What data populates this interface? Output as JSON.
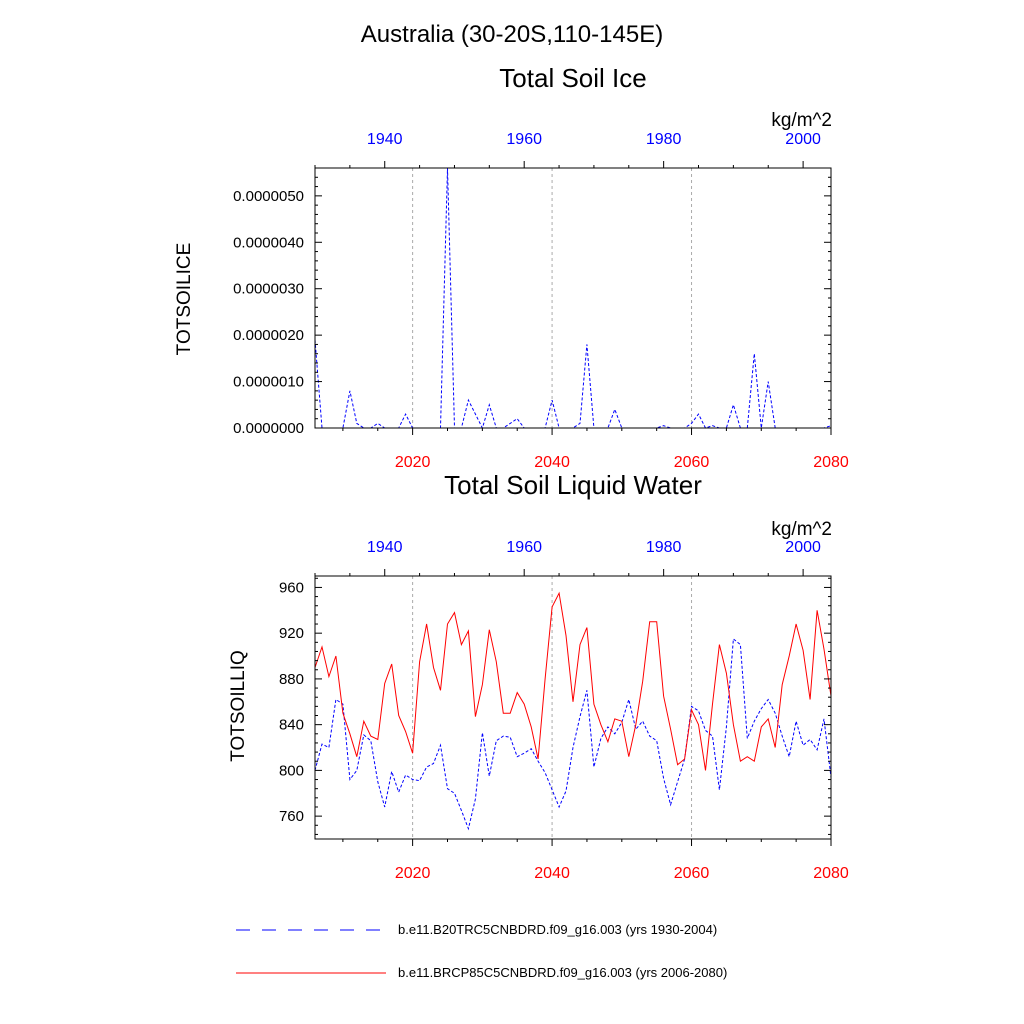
{
  "main_title": "Australia (30-20S,110-145E)",
  "colors": {
    "blue": "#0000ff",
    "red": "#ff0000",
    "grid": "#aaaaaa",
    "axis": "#000000"
  },
  "chart_data": [
    {
      "type": "line",
      "title": "Total Soil Ice",
      "units": "kg/m^2",
      "ylabel": "TOTSOILICE",
      "ylim": [
        0,
        5.6e-06
      ],
      "yticks": [
        "0.0000000",
        "0.0000010",
        "0.0000020",
        "0.0000030",
        "0.0000040",
        "0.0000050"
      ],
      "ytick_values": [
        0,
        1e-06,
        2e-06,
        3e-06,
        4e-06,
        5e-06
      ],
      "xlim_bottom": [
        2006,
        2080
      ],
      "xticks_bottom": [
        "2020",
        "2040",
        "2060",
        "2080"
      ],
      "xlim_top": [
        1930,
        2004
      ],
      "xticks_top": [
        "1940",
        "1960",
        "1980",
        "2000"
      ],
      "series": [
        {
          "name": "b.e11.B20TRC5CNBDRD.f09_g16.003 (yrs 1930-2004)",
          "style": "dashed",
          "color": "#0000ff",
          "x": [
            1930,
            1931,
            1932,
            1933,
            1934,
            1935,
            1936,
            1937,
            1938,
            1939,
            1940,
            1941,
            1942,
            1943,
            1944,
            1945,
            1946,
            1947,
            1948,
            1949,
            1950,
            1951,
            1952,
            1953,
            1954,
            1955,
            1956,
            1957,
            1958,
            1959,
            1960,
            1961,
            1962,
            1963,
            1964,
            1965,
            1966,
            1967,
            1968,
            1969,
            1970,
            1971,
            1972,
            1973,
            1974,
            1975,
            1976,
            1977,
            1978,
            1979,
            1980,
            1981,
            1982,
            1983,
            1984,
            1985,
            1986,
            1987,
            1988,
            1989,
            1990,
            1991,
            1992,
            1993,
            1994,
            1995,
            1996,
            1997,
            1998,
            1999,
            2000,
            2001,
            2002,
            2003,
            2004
          ],
          "values": [
            1.9e-06,
            0,
            0,
            0,
            0,
            8e-07,
            1e-07,
            0,
            0,
            1e-07,
            0,
            0,
            0,
            3e-07,
            0,
            0,
            0,
            0,
            0,
            5.6e-06,
            0,
            0,
            6e-07,
            3e-07,
            0,
            5e-07,
            0,
            0,
            1e-07,
            2e-07,
            0,
            0,
            0,
            0,
            6e-07,
            0,
            0,
            0,
            1e-07,
            1.8e-06,
            0,
            0,
            0,
            4e-07,
            0,
            0,
            0,
            0,
            0,
            0,
            5e-08,
            0,
            0,
            0,
            1e-07,
            3e-07,
            0,
            5e-08,
            0,
            0,
            5e-07,
            0,
            0,
            1.6e-06,
            0,
            1e-06,
            0,
            0,
            0,
            0,
            0,
            0,
            0,
            0,
            5e-08
          ]
        },
        {
          "name": "b.e11.BRCP85C5CNBDRD.f09_g16.003 (yrs 2006-2080)",
          "style": "solid",
          "color": "#ff0000",
          "x": [
            2006,
            2080
          ],
          "values": [
            0,
            0
          ]
        }
      ]
    },
    {
      "type": "line",
      "title": "Total Soil Liquid Water",
      "units": "kg/m^2",
      "ylabel": "TOTSOILLIQ",
      "ylim": [
        740,
        970
      ],
      "yticks": [
        "760",
        "800",
        "840",
        "880",
        "920",
        "960"
      ],
      "ytick_values": [
        760,
        800,
        840,
        880,
        920,
        960
      ],
      "xlim_bottom": [
        2006,
        2080
      ],
      "xticks_bottom": [
        "2020",
        "2040",
        "2060",
        "2080"
      ],
      "xlim_top": [
        1930,
        2004
      ],
      "xticks_top": [
        "1940",
        "1960",
        "1980",
        "2000"
      ],
      "series": [
        {
          "name": "b.e11.B20TRC5CNBDRD.f09_g16.003 (yrs 1930-2004)",
          "style": "dashed",
          "color": "#0000ff",
          "x": [
            1930,
            1931,
            1932,
            1933,
            1934,
            1935,
            1936,
            1937,
            1938,
            1939,
            1940,
            1941,
            1942,
            1943,
            1944,
            1945,
            1946,
            1947,
            1948,
            1949,
            1950,
            1951,
            1952,
            1953,
            1954,
            1955,
            1956,
            1957,
            1958,
            1959,
            1960,
            1961,
            1962,
            1963,
            1964,
            1965,
            1966,
            1967,
            1968,
            1969,
            1970,
            1971,
            1972,
            1973,
            1974,
            1975,
            1976,
            1977,
            1978,
            1979,
            1980,
            1981,
            1982,
            1983,
            1984,
            1985,
            1986,
            1987,
            1988,
            1989,
            1990,
            1991,
            1992,
            1993,
            1994,
            1995,
            1996,
            1997,
            1998,
            1999,
            2000,
            2001,
            2002,
            2003,
            2004
          ],
          "values": [
            800,
            823,
            820,
            862,
            858,
            792,
            800,
            831,
            826,
            790,
            768,
            799,
            781,
            796,
            792,
            791,
            803,
            806,
            822,
            784,
            780,
            765,
            749,
            775,
            833,
            795,
            826,
            830,
            829,
            812,
            815,
            819,
            808,
            798,
            783,
            768,
            782,
            820,
            847,
            870,
            803,
            828,
            838,
            832,
            842,
            862,
            836,
            843,
            830,
            826,
            793,
            770,
            790,
            810,
            856,
            852,
            835,
            830,
            783,
            838,
            915,
            910,
            828,
            843,
            854,
            862,
            850,
            830,
            812,
            843,
            822,
            827,
            818,
            845,
            794
          ]
        },
        {
          "name": "b.e11.BRCP85C5CNBDRD.f09_g16.003 (yrs 2006-2080)",
          "style": "solid",
          "color": "#ff0000",
          "x": [
            2006,
            2007,
            2008,
            2009,
            2010,
            2011,
            2012,
            2013,
            2014,
            2015,
            2016,
            2017,
            2018,
            2019,
            2020,
            2021,
            2022,
            2023,
            2024,
            2025,
            2026,
            2027,
            2028,
            2029,
            2030,
            2031,
            2032,
            2033,
            2034,
            2035,
            2036,
            2037,
            2038,
            2039,
            2040,
            2041,
            2042,
            2043,
            2044,
            2045,
            2046,
            2047,
            2048,
            2049,
            2050,
            2051,
            2052,
            2053,
            2054,
            2055,
            2056,
            2057,
            2058,
            2059,
            2060,
            2061,
            2062,
            2063,
            2064,
            2065,
            2066,
            2067,
            2068,
            2069,
            2070,
            2071,
            2072,
            2073,
            2074,
            2075,
            2076,
            2077,
            2078,
            2079,
            2080
          ],
          "values": [
            890,
            908,
            882,
            900,
            850,
            832,
            812,
            843,
            830,
            827,
            876,
            893,
            848,
            834,
            815,
            895,
            928,
            890,
            870,
            928,
            938,
            910,
            922,
            847,
            875,
            923,
            895,
            850,
            850,
            868,
            858,
            838,
            810,
            880,
            943,
            955,
            918,
            860,
            910,
            925,
            858,
            840,
            825,
            845,
            843,
            812,
            840,
            878,
            930,
            930,
            865,
            836,
            805,
            810,
            853,
            840,
            800,
            858,
            910,
            885,
            840,
            808,
            812,
            808,
            838,
            845,
            820,
            875,
            900,
            928,
            905,
            862,
            940,
            906,
            865
          ]
        }
      ]
    }
  ]
}
